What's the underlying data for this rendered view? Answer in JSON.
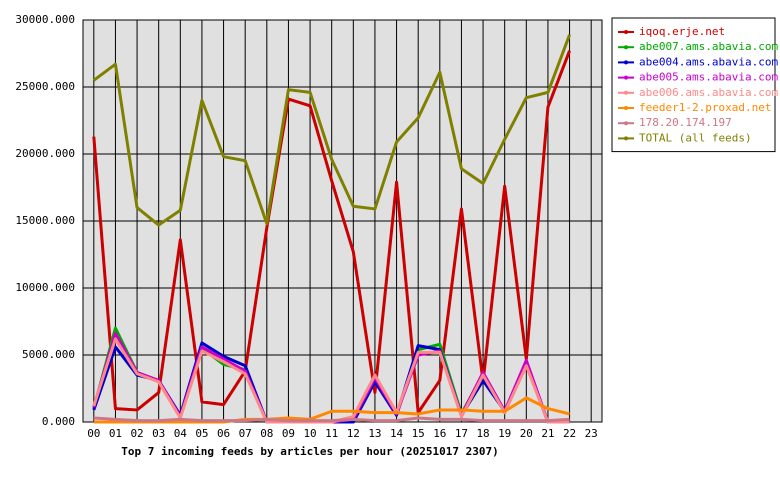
{
  "chart_data": {
    "type": "line",
    "title": "Top 7 incoming feeds by articles per hour (20251017 2307)",
    "categories": [
      "00",
      "01",
      "02",
      "03",
      "04",
      "05",
      "06",
      "07",
      "08",
      "09",
      "10",
      "11",
      "12",
      "13",
      "14",
      "15",
      "16",
      "17",
      "18",
      "19",
      "20",
      "21",
      "22",
      "23"
    ],
    "ylim": [
      0,
      30000
    ],
    "yticks": [
      {
        "value": 0,
        "label": "0.000"
      },
      {
        "value": 5000,
        "label": "5000.000"
      },
      {
        "value": 10000,
        "label": "10000.000"
      },
      {
        "value": 15000,
        "label": "15000.000"
      },
      {
        "value": 20000,
        "label": "20000.000"
      },
      {
        "value": 25000,
        "label": "25000.000"
      },
      {
        "value": 30000,
        "label": "30000.000"
      }
    ],
    "grid": true,
    "legend": "right",
    "series": [
      {
        "name": "iqoq.erje.net",
        "color": "#cc0000",
        "values": [
          21300,
          1000,
          900,
          2200,
          13600,
          1500,
          1300,
          3800,
          14500,
          24100,
          23600,
          18000,
          12700,
          2200,
          17900,
          700,
          3100,
          15900,
          3000,
          17600,
          4700,
          23500,
          27700,
          null
        ]
      },
      {
        "name": "abe007.ams.abavia.com",
        "color": "#00aa00",
        "values": [
          1000,
          7000,
          3700,
          3000,
          400,
          5500,
          4300,
          3900,
          0,
          0,
          0,
          0,
          0,
          3200,
          600,
          5400,
          5800,
          600,
          3600,
          700,
          4500,
          0,
          0,
          null
        ]
      },
      {
        "name": "abe004.ams.abavia.com",
        "color": "#0000cc",
        "values": [
          900,
          5600,
          3500,
          3100,
          500,
          5900,
          4900,
          4200,
          0,
          0,
          0,
          0,
          0,
          3000,
          500,
          5700,
          5400,
          500,
          3100,
          800,
          4300,
          0,
          0,
          null
        ]
      },
      {
        "name": "abe005.ams.abavia.com",
        "color": "#cc00cc",
        "values": [
          1100,
          6600,
          3700,
          3100,
          400,
          5600,
          4700,
          3800,
          0,
          0,
          0,
          0,
          200,
          3300,
          600,
          5000,
          5300,
          500,
          3700,
          800,
          4600,
          0,
          0,
          null
        ]
      },
      {
        "name": "abe006.ams.abavia.com",
        "color": "#ff8888",
        "values": [
          1200,
          6200,
          3600,
          3000,
          300,
          5300,
          4500,
          3600,
          0,
          0,
          0,
          0,
          400,
          3500,
          700,
          5200,
          5200,
          400,
          3500,
          700,
          4200,
          0,
          0,
          null
        ]
      },
      {
        "name": "feeder1-2.proxad.net",
        "color": "#ff8800",
        "values": [
          0,
          0,
          0,
          0,
          0,
          0,
          0,
          200,
          200,
          300,
          200,
          800,
          800,
          700,
          700,
          600,
          900,
          900,
          800,
          800,
          1800,
          1000,
          600,
          null
        ]
      },
      {
        "name": "178.20.174.197",
        "color": "#cc7788",
        "values": [
          300,
          200,
          100,
          100,
          200,
          100,
          100,
          100,
          200,
          100,
          100,
          100,
          200,
          100,
          100,
          300,
          200,
          200,
          100,
          100,
          100,
          100,
          200,
          null
        ]
      },
      {
        "name": "TOTAL (all feeds)",
        "color": "#808000",
        "values": [
          25500,
          26700,
          16000,
          14700,
          15800,
          24000,
          19800,
          19500,
          14800,
          24800,
          24600,
          19600,
          16100,
          15900,
          20900,
          22700,
          26100,
          18900,
          17800,
          21100,
          24200,
          24600,
          28900,
          null
        ]
      }
    ]
  }
}
